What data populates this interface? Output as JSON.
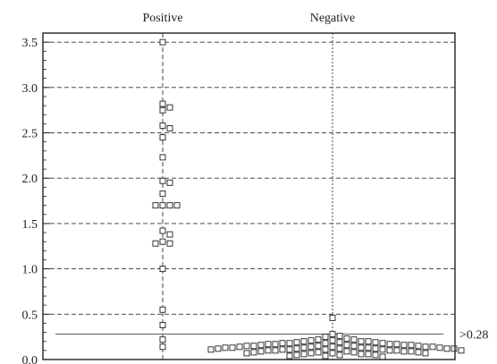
{
  "chart_data": {
    "type": "scatter",
    "title": "",
    "xlabel": "",
    "ylabel": "",
    "categories": [
      "Positive",
      "Negative"
    ],
    "ylim": [
      0.0,
      3.6
    ],
    "yticks": [
      {
        "value": 0.0,
        "label": "0.0"
      },
      {
        "value": 0.5,
        "label": "0.5"
      },
      {
        "value": 1.0,
        "label": "1.0"
      },
      {
        "value": 1.5,
        "label": "1.5"
      },
      {
        "value": 2.0,
        "label": "2.0"
      },
      {
        "value": 2.5,
        "label": "2.5"
      },
      {
        "value": 3.0,
        "label": "3.0"
      },
      {
        "value": 3.5,
        "label": "3.5"
      }
    ],
    "grid": true,
    "cutoff": {
      "value": 0.28,
      "label": ">0.28"
    },
    "series": [
      {
        "category": "Positive",
        "values": [
          3.5,
          2.82,
          2.78,
          2.75,
          2.58,
          2.55,
          2.45,
          2.23,
          1.97,
          1.95,
          1.83,
          1.7,
          1.7,
          1.7,
          1.7,
          1.42,
          1.38,
          1.3,
          1.28,
          1.28,
          1.0,
          0.55,
          0.38,
          0.22,
          0.14
        ]
      },
      {
        "category": "Negative",
        "values": [
          0.46,
          0.28,
          0.26,
          0.25,
          0.23,
          0.22,
          0.22,
          0.21,
          0.21,
          0.2,
          0.2,
          0.2,
          0.19,
          0.19,
          0.19,
          0.18,
          0.18,
          0.18,
          0.18,
          0.17,
          0.17,
          0.17,
          0.17,
          0.16,
          0.16,
          0.16,
          0.16,
          0.15,
          0.15,
          0.15,
          0.15,
          0.15,
          0.14,
          0.14,
          0.14,
          0.14,
          0.14,
          0.13,
          0.13,
          0.13,
          0.13,
          0.13,
          0.13,
          0.12,
          0.12,
          0.12,
          0.12,
          0.12,
          0.12,
          0.11,
          0.11,
          0.11,
          0.11,
          0.11,
          0.1,
          0.1,
          0.1,
          0.1,
          0.1,
          0.09,
          0.09,
          0.09,
          0.09,
          0.08,
          0.08,
          0.08,
          0.08,
          0.07,
          0.07,
          0.07,
          0.07,
          0.06,
          0.06,
          0.06,
          0.05,
          0.05,
          0.05,
          0.04,
          0.04,
          0.03
        ]
      }
    ]
  }
}
